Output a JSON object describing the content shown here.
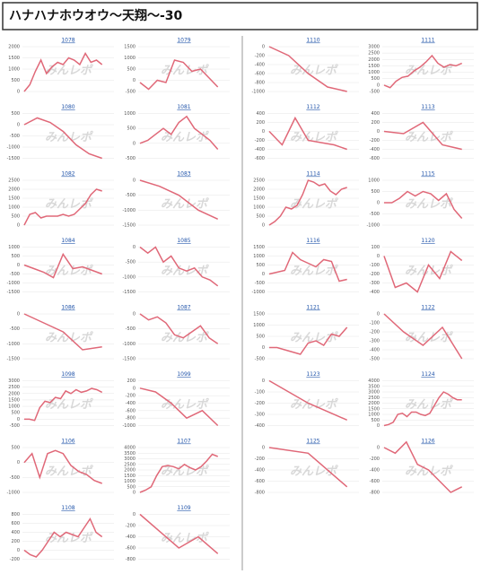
{
  "title": "ハナハナホウオウ～天翔～-30",
  "watermark": "みんレポ",
  "chart_data": [
    {
      "type": "line",
      "title": "1078",
      "ylim": [
        0,
        2000
      ],
      "yticks": [
        0,
        500,
        1000,
        1500,
        2000
      ],
      "values": [
        0,
        300,
        900,
        1400,
        800,
        1100,
        1300,
        1200,
        1500,
        1400,
        1200,
        1700,
        1300,
        1400,
        1200
      ]
    },
    {
      "type": "line",
      "title": "1079",
      "ylim": [
        -500,
        1500
      ],
      "yticks": [
        -500,
        0,
        500,
        1000,
        1500
      ],
      "values": [
        -100,
        -400,
        0,
        -100,
        900,
        800,
        400,
        500,
        100,
        -300
      ]
    },
    {
      "type": "line",
      "title": "1080",
      "ylim": [
        -1500,
        500
      ],
      "yticks": [
        -1500,
        -1000,
        -500,
        0,
        500
      ],
      "values": [
        0,
        300,
        100,
        -300,
        -900,
        -1300,
        -1500
      ]
    },
    {
      "type": "line",
      "title": "1081",
      "ylim": [
        -500,
        1000
      ],
      "yticks": [
        -500,
        0,
        500,
        1000
      ],
      "values": [
        0,
        100,
        300,
        500,
        300,
        700,
        900,
        500,
        300,
        100,
        -200
      ]
    },
    {
      "type": "line",
      "title": "1082",
      "ylim": [
        0,
        2500
      ],
      "yticks": [
        0,
        500,
        1000,
        1500,
        2000,
        2500
      ],
      "values": [
        0,
        600,
        700,
        400,
        500,
        500,
        500,
        600,
        500,
        600,
        900,
        1200,
        1700,
        2000,
        1900
      ]
    },
    {
      "type": "line",
      "title": "1083",
      "ylim": [
        -1500,
        0
      ],
      "yticks": [
        -1500,
        -1000,
        -500,
        0
      ],
      "values": [
        0,
        -200,
        -500,
        -1000,
        -1300
      ]
    },
    {
      "type": "line",
      "title": "1084",
      "ylim": [
        -1500,
        1000
      ],
      "yticks": [
        -1500,
        -1000,
        -500,
        0,
        500,
        1000
      ],
      "values": [
        0,
        -200,
        -400,
        -700,
        600,
        -200,
        -100,
        -300,
        -500
      ]
    },
    {
      "type": "line",
      "title": "1085",
      "ylim": [
        -1500,
        0
      ],
      "yticks": [
        -1500,
        -1000,
        -500,
        0
      ],
      "values": [
        0,
        -200,
        0,
        -500,
        -300,
        -700,
        -800,
        -700,
        -1000,
        -1100,
        -1300
      ]
    },
    {
      "type": "line",
      "title": "1086",
      "ylim": [
        -1500,
        0
      ],
      "yticks": [
        -1500,
        -1000,
        -500,
        0
      ],
      "values": [
        0,
        -300,
        -600,
        -1200,
        -1100
      ]
    },
    {
      "type": "line",
      "title": "1087",
      "ylim": [
        -1500,
        0
      ],
      "yticks": [
        -1500,
        -1000,
        -500,
        0
      ],
      "values": [
        0,
        -200,
        -100,
        -300,
        -700,
        -800,
        -600,
        -400,
        -800,
        -1000
      ]
    },
    {
      "type": "line",
      "title": "1098",
      "ylim": [
        -500,
        3000
      ],
      "yticks": [
        -500,
        0,
        500,
        1000,
        1500,
        2000,
        2500,
        3000
      ],
      "values": [
        0,
        0,
        -100,
        900,
        1400,
        1300,
        1700,
        1600,
        2200,
        2000,
        2300,
        2100,
        2200,
        2400,
        2300,
        2100
      ]
    },
    {
      "type": "line",
      "title": "1099",
      "ylim": [
        -1000,
        200
      ],
      "yticks": [
        -1000,
        -800,
        -600,
        -400,
        -200,
        0,
        200
      ],
      "values": [
        0,
        -100,
        -400,
        -800,
        -600,
        -1000
      ]
    },
    {
      "type": "line",
      "title": "1106",
      "ylim": [
        -1000,
        500
      ],
      "yticks": [
        -1000,
        -500,
        0,
        500
      ],
      "values": [
        0,
        300,
        -500,
        300,
        400,
        300,
        -100,
        -300,
        -400,
        -600,
        -700
      ]
    },
    {
      "type": "line",
      "title": "1107",
      "ylim": [
        0,
        4000
      ],
      "yticks": [
        0,
        500,
        1000,
        1500,
        2000,
        2500,
        3000,
        3500,
        4000
      ],
      "values": [
        0,
        200,
        500,
        1500,
        2300,
        2400,
        2300,
        2100,
        2500,
        2200,
        2000,
        2300,
        2800,
        3400,
        3200
      ]
    },
    {
      "type": "line",
      "title": "1108",
      "ylim": [
        -200,
        800
      ],
      "yticks": [
        -200,
        0,
        200,
        400,
        600,
        800
      ],
      "values": [
        0,
        -100,
        -150,
        0,
        200,
        400,
        300,
        400,
        350,
        300,
        500,
        700,
        400,
        300
      ]
    },
    {
      "type": "line",
      "title": "1109",
      "ylim": [
        -800,
        0
      ],
      "yticks": [
        -800,
        -600,
        -400,
        -200,
        0
      ],
      "values": [
        0,
        -300,
        -600,
        -400,
        -700
      ]
    },
    {
      "type": "line",
      "title": "1110",
      "ylim": [
        -1000,
        0
      ],
      "yticks": [
        -1000,
        -800,
        -600,
        -400,
        -200,
        0
      ],
      "values": [
        0,
        -200,
        -600,
        -900,
        -1000
      ]
    },
    {
      "type": "line",
      "title": "1111",
      "ylim": [
        -500,
        3000
      ],
      "yticks": [
        -500,
        0,
        500,
        1000,
        1500,
        2000,
        2500,
        3000
      ],
      "values": [
        0,
        -200,
        300,
        600,
        700,
        1100,
        1400,
        1800,
        2300,
        1700,
        1400,
        1600,
        1500,
        1700
      ]
    },
    {
      "type": "line",
      "title": "1112",
      "ylim": [
        -600,
        400
      ],
      "yticks": [
        -600,
        -400,
        -200,
        0,
        200,
        400
      ],
      "values": [
        0,
        -300,
        300,
        -200,
        -250,
        -300,
        -400
      ]
    },
    {
      "type": "line",
      "title": "1113",
      "ylim": [
        -600,
        400
      ],
      "yticks": [
        -600,
        -400,
        -200,
        0,
        200,
        400
      ],
      "values": [
        0,
        -50,
        200,
        -300,
        -400
      ]
    },
    {
      "type": "line",
      "title": "1114",
      "ylim": [
        0,
        2500
      ],
      "yticks": [
        0,
        500,
        1000,
        1500,
        2000,
        2500
      ],
      "values": [
        0,
        200,
        500,
        1000,
        900,
        1100,
        1700,
        2500,
        2400,
        2200,
        2300,
        1900,
        1700,
        2000,
        2100
      ]
    },
    {
      "type": "line",
      "title": "1115",
      "ylim": [
        -1000,
        1000
      ],
      "yticks": [
        -1000,
        -500,
        0,
        500,
        1000
      ],
      "values": [
        0,
        0,
        200,
        500,
        300,
        500,
        400,
        100,
        400,
        -300,
        -700
      ]
    },
    {
      "type": "line",
      "title": "1116",
      "ylim": [
        -1000,
        1500
      ],
      "yticks": [
        -1000,
        -500,
        0,
        500,
        1000,
        1500
      ],
      "values": [
        0,
        100,
        200,
        1200,
        800,
        600,
        400,
        800,
        700,
        -400,
        -300
      ]
    },
    {
      "type": "line",
      "title": "1120",
      "ylim": [
        -400,
        100
      ],
      "yticks": [
        -400,
        -300,
        -200,
        -100,
        0,
        100
      ],
      "values": [
        0,
        -350,
        -300,
        -400,
        -100,
        -250,
        50,
        -50
      ]
    },
    {
      "type": "line",
      "title": "1121",
      "ylim": [
        -500,
        1500
      ],
      "yticks": [
        -500,
        0,
        500,
        1000,
        1500
      ],
      "values": [
        0,
        0,
        -100,
        -200,
        -300,
        200,
        300,
        100,
        600,
        500,
        900
      ]
    },
    {
      "type": "line",
      "title": "1122",
      "ylim": [
        -500,
        0
      ],
      "yticks": [
        -500,
        -400,
        -300,
        -200,
        -100,
        0
      ],
      "values": [
        0,
        -200,
        -350,
        -150,
        -500
      ]
    },
    {
      "type": "line",
      "title": "1123",
      "ylim": [
        -400,
        0
      ],
      "yticks": [
        -400,
        -300,
        -200,
        -100,
        0
      ],
      "values": [
        0,
        -200,
        -350
      ]
    },
    {
      "type": "line",
      "title": "1124",
      "ylim": [
        0,
        4000
      ],
      "yticks": [
        0,
        500,
        1000,
        1500,
        2000,
        2500,
        3000,
        3500,
        4000
      ],
      "values": [
        0,
        100,
        300,
        1000,
        1100,
        800,
        1200,
        1200,
        1000,
        900,
        1100,
        1800,
        2500,
        3000,
        2800,
        2500,
        2300,
        2300
      ]
    },
    {
      "type": "line",
      "title": "1125",
      "ylim": [
        -800,
        0
      ],
      "yticks": [
        -800,
        -600,
        -400,
        -200,
        0
      ],
      "values": [
        0,
        -100,
        -700
      ]
    },
    {
      "type": "line",
      "title": "1126",
      "ylim": [
        -800,
        0
      ],
      "yticks": [
        -800,
        -600,
        -400,
        -200,
        0
      ],
      "values": [
        0,
        -100,
        100,
        -300,
        -400,
        -600,
        -800,
        -700
      ]
    }
  ]
}
